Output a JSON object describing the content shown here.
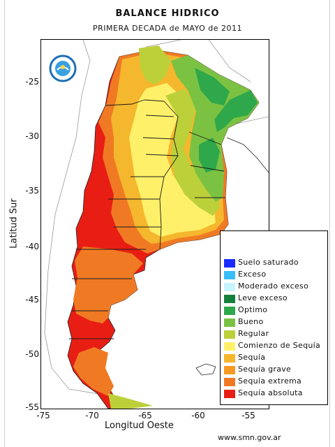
{
  "title": "BALANCE HIDRICO",
  "subtitle": "PRIMERA DECADA de MAYO de 2011",
  "axes": {
    "ylabel": "Latitud Sur",
    "xlabel": "Longitud Oeste",
    "yticks": [
      "-25",
      "-30",
      "-35",
      "-40",
      "-45",
      "-50",
      "-55"
    ],
    "xticks": [
      "-75",
      "-70",
      "-65",
      "-60",
      "-55"
    ]
  },
  "legend": {
    "items": [
      {
        "label": "Suelo saturado",
        "color": "#1a2bff"
      },
      {
        "label": "Exceso",
        "color": "#38bdf8"
      },
      {
        "label": "Moderado exceso",
        "color": "#c8f4ff"
      },
      {
        "label": "Leve exceso",
        "color": "#15803d"
      },
      {
        "label": "Optimo",
        "color": "#2ea84a"
      },
      {
        "label": "Bueno",
        "color": "#7cc242"
      },
      {
        "label": "Regular",
        "color": "#bcd03a"
      },
      {
        "label": "Comienzo de Sequía",
        "color": "#fff06a"
      },
      {
        "label": "Sequía",
        "color": "#f5b72d"
      },
      {
        "label": "Sequía grave",
        "color": "#f59a23"
      },
      {
        "label": "Sequía extrema",
        "color": "#f07a24"
      },
      {
        "label": "Sequía absoluta",
        "color": "#e81e14"
      }
    ]
  },
  "source": "www.smn.gov.ar",
  "logo": {
    "icon": "smn-logo-icon"
  }
}
